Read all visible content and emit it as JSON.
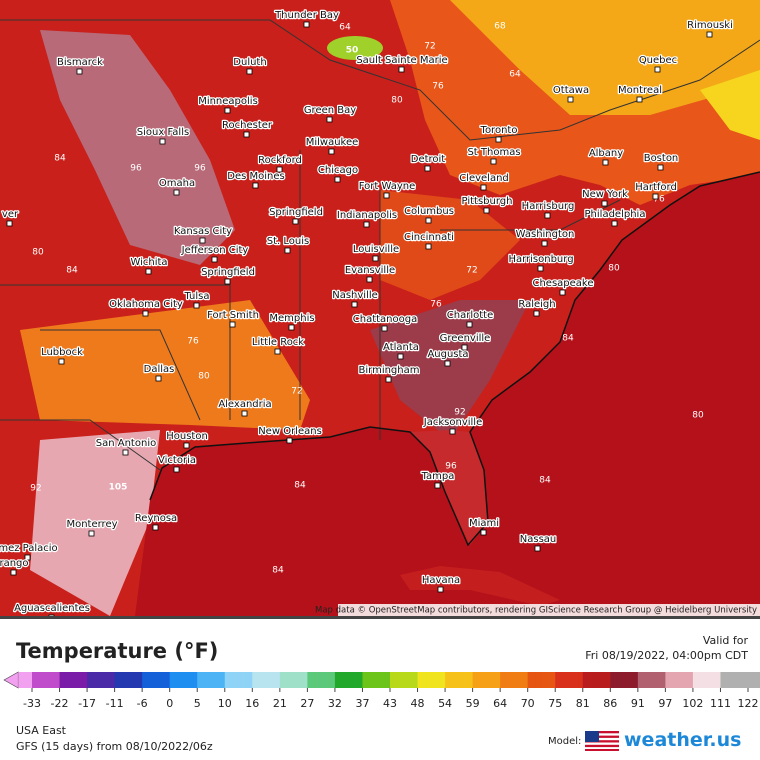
{
  "map": {
    "cities": [
      "Thunder Bay",
      "Bismarck",
      "Duluth",
      "Sault Sainte Marie",
      "Rimouski",
      "Quebec",
      "Ottawa",
      "Montreal",
      "Minneapolis",
      "Rochester",
      "Green Bay",
      "Sioux Falls",
      "Milwaukee",
      "Toronto",
      "Albany",
      "Boston",
      "St Thomas",
      "Detroit",
      "Rockford",
      "Des Moines",
      "Chicago",
      "Omaha",
      "Cleveland",
      "Fort Wayne",
      "Hartford",
      "New York",
      "Pittsburgh",
      "Harrisburg",
      "Philadelphia",
      "Springfield",
      "Indianapolis",
      "Columbus",
      "Kansas City",
      "Jefferson City",
      "St. Louis",
      "Cincinnati",
      "Washington",
      "Louisville",
      "Harrisonburg",
      "Wichita",
      "Springfield",
      "Evansville",
      "Chesapeake",
      "Nashville",
      "Oklahoma City",
      "Tulsa",
      "Raleigh",
      "Fort Smith",
      "Memphis",
      "Chattanooga",
      "Charlotte",
      "Little Rock",
      "Greenville",
      "Lubbock",
      "Atlanta",
      "Augusta",
      "Birmingham",
      "Dallas",
      "Alexandria",
      "Jacksonville",
      "San Antonio",
      "Houston",
      "New Orleans",
      "Victoria",
      "Tampa",
      "Monterrey",
      "Reynosa",
      "Miami",
      "Nassau",
      "mez Palacio",
      "rango",
      "Havana",
      "Aguascalientes",
      "ver"
    ],
    "contour_labels": [
      "50",
      "105",
      "64",
      "68",
      "72",
      "76",
      "64",
      "80",
      "84",
      "96",
      "96",
      "80",
      "84",
      "72",
      "76",
      "84",
      "80",
      "76",
      "80",
      "84",
      "84",
      "84",
      "92",
      "96",
      "80",
      "72",
      "76",
      "92"
    ],
    "attribution": "Map data © OpenStreetMap contributors, rendering GIScience Research Group @ Heidelberg University"
  },
  "legend": {
    "title": "Temperature (°F)",
    "ticks": [
      "-33",
      "-22",
      "-17",
      "-11",
      "-6",
      "0",
      "5",
      "10",
      "16",
      "21",
      "27",
      "32",
      "37",
      "43",
      "48",
      "54",
      "59",
      "64",
      "70",
      "75",
      "81",
      "86",
      "91",
      "97",
      "102",
      "111",
      "122"
    ]
  },
  "footer": {
    "valid_label": "Valid for",
    "valid_time": "Fri 08/19/2022, 04:00pm CDT",
    "region": "USA East",
    "run": "GFS (15 days) from 08/10/2022/06z",
    "model_label": "Model:",
    "brand": "weather.us"
  }
}
